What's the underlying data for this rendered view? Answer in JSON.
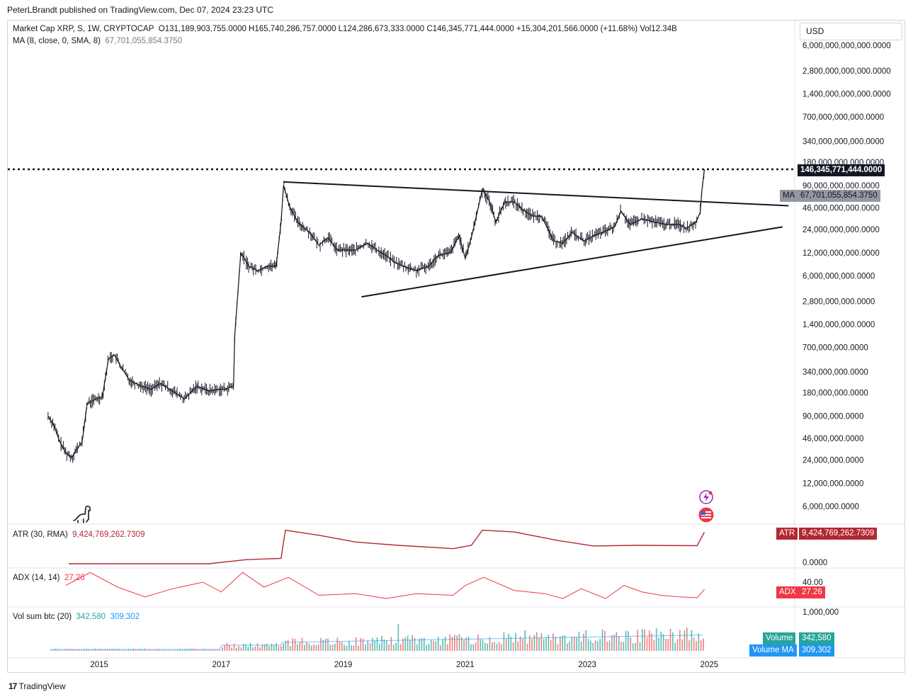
{
  "header": {
    "credit": "PeterLBrandt published on TradingView.com, Dec 07, 2024 23:23 UTC",
    "currency": "USD"
  },
  "legend": {
    "symbol": "Market Cap XRP, S, 1W, CRYPTOCAP",
    "ohlc": "O131,189,903,755.0000  H165,740,286,757.0000  L124,286,673,333.0000  C146,345,771,444.0000  +15,304,201,566.0000 (+11.68%)  Vol12.34B",
    "ma_label": "MA (8, close, 0, SMA, 8)",
    "ma_value": "67,701,055,854.3750"
  },
  "price_tags": {
    "last": "146,345,771,444.0000",
    "ma_badge": "MA",
    "ma": "67,701,055,854.3750"
  },
  "atr": {
    "label": "ATR (30, RMA)",
    "value": "9,424,769,262.7309",
    "badge": "ATR",
    "tick_zero": "0.0000"
  },
  "adx": {
    "label": "ADX (14, 14)",
    "value": "27.26",
    "badge": "ADX",
    "tick": "40.00"
  },
  "volume": {
    "label": "Vol sum btc (20)",
    "value1": "342,580",
    "value2": "309,302",
    "badge1": "Volume",
    "badge2": "Volume MA",
    "tick": "1,000,000"
  },
  "footer": {
    "brand": "TradingView"
  },
  "colors": {
    "text": "#131722",
    "muted": "#787b86",
    "atr": "#b22833",
    "adx": "#f23645",
    "volume_up": "#26a69a",
    "volume_down": "#ef5350",
    "volume_ma": "#2196f3",
    "last_tag": "#131722",
    "ma_tag": "#9598a1"
  },
  "chart_data": {
    "type": "line",
    "title": "Market Cap XRP, S, 1W, CRYPTOCAP",
    "scale": "log",
    "y_ticks": [
      "6,000,000,000,000.0000",
      "2,800,000,000,000.0000",
      "1,400,000,000,000.0000",
      "700,000,000,000.0000",
      "340,000,000,000.0000",
      "180,000,000,000.0000",
      "90,000,000,000.0000",
      "46,000,000,000.0000",
      "24,000,000,000.0000",
      "12,000,000,000.0000",
      "6,000,000,000.0000",
      "2,800,000,000.0000",
      "1,400,000,000.0000",
      "700,000,000.0000",
      "340,000,000.0000",
      "180,000,000.0000",
      "90,000,000.0000",
      "46,000,000.0000",
      "24,000,000.0000",
      "12,000,000.0000",
      "6,000,000.0000"
    ],
    "y_tick_values": [
      6000000000000.0,
      2800000000000.0,
      1400000000000.0,
      700000000000.0,
      340000000000.0,
      180000000000.0,
      90000000000.0,
      46000000000.0,
      24000000000.0,
      12000000000.0,
      6000000000.0,
      2800000000.0,
      1400000000.0,
      700000000.0,
      340000000.0,
      180000000.0,
      90000000.0,
      46000000.0,
      24000000.0,
      12000000.0,
      6000000.0
    ],
    "x_ticks": [
      "2015",
      "2017",
      "2019",
      "2021",
      "2023",
      "2025"
    ],
    "x_tick_values": [
      2015,
      2017,
      2019,
      2021,
      2023,
      2025
    ],
    "x_range": [
      2013.5,
      2026.4
    ],
    "y_range": [
      4500000.0,
      7500000000000.0
    ],
    "grid": false,
    "series": [
      {
        "values": [
          [
            2014.16,
            90000000.0
          ],
          [
            2014.25,
            70000000.0
          ],
          [
            2014.35,
            42000000.0
          ],
          [
            2014.45,
            30000000.0
          ],
          [
            2014.55,
            26000000.0
          ],
          [
            2014.62,
            32000000.0
          ],
          [
            2014.72,
            42000000.0
          ],
          [
            2014.8,
            130000000.0
          ],
          [
            2014.95,
            150000000.0
          ],
          [
            2015.05,
            160000000.0
          ],
          [
            2015.15,
            500000000.0
          ],
          [
            2015.25,
            560000000.0
          ],
          [
            2015.35,
            400000000.0
          ],
          [
            2015.5,
            260000000.0
          ],
          [
            2015.7,
            220000000.0
          ],
          [
            2015.85,
            200000000.0
          ],
          [
            2016.0,
            240000000.0
          ],
          [
            2016.2,
            190000000.0
          ],
          [
            2016.4,
            150000000.0
          ],
          [
            2016.6,
            220000000.0
          ],
          [
            2016.8,
            190000000.0
          ],
          [
            2016.95,
            200000000.0
          ],
          [
            2017.05,
            200000000.0
          ],
          [
            2017.2,
            220000000.0
          ],
          [
            2017.22,
            1000000000.0
          ],
          [
            2017.32,
            12000000000.0
          ],
          [
            2017.38,
            10000000000.0
          ],
          [
            2017.45,
            8000000000.0
          ],
          [
            2017.6,
            7000000000.0
          ],
          [
            2017.75,
            8000000000.0
          ],
          [
            2017.9,
            8000000000.0
          ],
          [
            2017.98,
            30000000000.0
          ],
          [
            2018.02,
            90000000000.0
          ],
          [
            2018.12,
            48000000000.0
          ],
          [
            2018.25,
            30000000000.0
          ],
          [
            2018.45,
            22000000000.0
          ],
          [
            2018.6,
            15000000000.0
          ],
          [
            2018.75,
            19000000000.0
          ],
          [
            2018.9,
            13000000000.0
          ],
          [
            2019.05,
            13000000000.0
          ],
          [
            2019.2,
            13000000000.0
          ],
          [
            2019.4,
            16000000000.0
          ],
          [
            2019.55,
            13000000000.0
          ],
          [
            2019.7,
            11000000000.0
          ],
          [
            2019.85,
            9000000000.0
          ],
          [
            2019.98,
            8000000000.0
          ],
          [
            2020.2,
            7000000000.0
          ],
          [
            2020.4,
            8000000000.0
          ],
          [
            2020.55,
            11000000000.0
          ],
          [
            2020.75,
            12000000000.0
          ],
          [
            2020.9,
            20000000000.0
          ],
          [
            2021.0,
            10000000000.0
          ],
          [
            2021.12,
            22000000000.0
          ],
          [
            2021.28,
            80000000000.0
          ],
          [
            2021.4,
            55000000000.0
          ],
          [
            2021.5,
            30000000000.0
          ],
          [
            2021.65,
            55000000000.0
          ],
          [
            2021.8,
            55000000000.0
          ],
          [
            2021.95,
            43000000000.0
          ],
          [
            2022.1,
            36000000000.0
          ],
          [
            2022.25,
            36000000000.0
          ],
          [
            2022.45,
            17000000000.0
          ],
          [
            2022.6,
            16000000000.0
          ],
          [
            2022.75,
            22000000000.0
          ],
          [
            2022.95,
            17000000000.0
          ],
          [
            2023.1,
            20000000000.0
          ],
          [
            2023.25,
            22000000000.0
          ],
          [
            2023.45,
            26000000000.0
          ],
          [
            2023.55,
            42000000000.0
          ],
          [
            2023.7,
            28000000000.0
          ],
          [
            2023.9,
            33000000000.0
          ],
          [
            2024.1,
            30000000000.0
          ],
          [
            2024.3,
            28000000000.0
          ],
          [
            2024.5,
            28000000000.0
          ],
          [
            2024.62,
            25000000000.0
          ],
          [
            2024.78,
            30000000000.0
          ],
          [
            2024.85,
            40000000000.0
          ],
          [
            2024.88,
            80000000000.0
          ],
          [
            2024.92,
            146345771444.0
          ]
        ]
      }
    ],
    "annotations": {
      "upper_trendline": [
        [
          2018.02,
          100000000000.0
        ],
        [
          2026.3,
          49000000000.0
        ]
      ],
      "lower_trendline": [
        [
          2019.3,
          3200000000.0
        ],
        [
          2026.2,
          26000000000.0
        ]
      ],
      "dotted_level": 146345771444.0
    },
    "atr_series": {
      "range": [
        0,
        11000000000.0
      ],
      "values": [
        [
          2014.5,
          0
        ],
        [
          2016.8,
          0
        ],
        [
          2017.4,
          1200000000.0
        ],
        [
          2017.98,
          1600000000.0
        ],
        [
          2018.05,
          10000000000.0
        ],
        [
          2018.6,
          8500000000.0
        ],
        [
          2019.2,
          6500000000.0
        ],
        [
          2019.9,
          5500000000.0
        ],
        [
          2020.8,
          4500000000.0
        ],
        [
          2021.1,
          5500000000.0
        ],
        [
          2021.28,
          10000000000.0
        ],
        [
          2021.8,
          9500000000.0
        ],
        [
          2022.5,
          7000000000.0
        ],
        [
          2023.1,
          5300000000.0
        ],
        [
          2023.8,
          5500000000.0
        ],
        [
          2024.8,
          5400000000.0
        ],
        [
          2024.92,
          9424769262.73
        ]
      ]
    },
    "adx_series": {
      "range": [
        10,
        50
      ],
      "values": [
        [
          2014.45,
          32
        ],
        [
          2014.85,
          48
        ],
        [
          2015.3,
          30
        ],
        [
          2015.75,
          18
        ],
        [
          2016.2,
          28
        ],
        [
          2016.7,
          36
        ],
        [
          2017.0,
          24
        ],
        [
          2017.35,
          48
        ],
        [
          2017.7,
          30
        ],
        [
          2018.1,
          42
        ],
        [
          2018.6,
          20
        ],
        [
          2019.2,
          22
        ],
        [
          2019.7,
          16
        ],
        [
          2020.2,
          22
        ],
        [
          2020.8,
          20
        ],
        [
          2021.0,
          32
        ],
        [
          2021.3,
          42
        ],
        [
          2021.8,
          26
        ],
        [
          2022.3,
          22
        ],
        [
          2022.6,
          16
        ],
        [
          2022.9,
          28
        ],
        [
          2023.3,
          16
        ],
        [
          2023.6,
          32
        ],
        [
          2023.9,
          24
        ],
        [
          2024.2,
          20
        ],
        [
          2024.5,
          18
        ],
        [
          2024.8,
          17
        ],
        [
          2024.92,
          27.26
        ]
      ]
    },
    "volume_series": {
      "ma_value": 309302,
      "last_value": 342580
    }
  }
}
